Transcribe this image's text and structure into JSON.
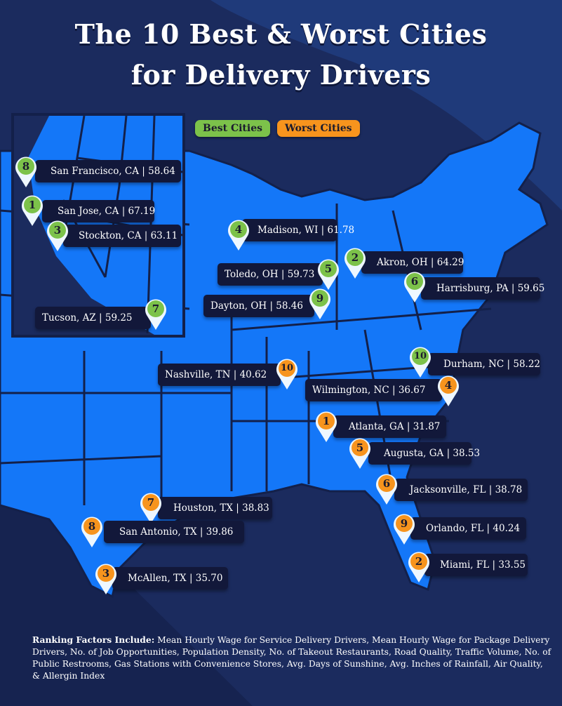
{
  "title_line1": "The 10 Best & Worst Cities",
  "title_line2": "for Delivery Drivers",
  "legend": {
    "best": "Best Cities",
    "worst": "Worst Cities"
  },
  "colors": {
    "background": "#1b2b5e",
    "map": "#1477f8",
    "best": "#7cc24a",
    "worst": "#f7941d",
    "label": "#12183a"
  },
  "best_cities": [
    {
      "rank": "8",
      "label": "San Francisco, CA | 58.64"
    },
    {
      "rank": "1",
      "label": "San Jose, CA | 67.19"
    },
    {
      "rank": "3",
      "label": "Stockton, CA | 63.11"
    },
    {
      "rank": "7",
      "label": "Tucson, AZ | 59.25"
    },
    {
      "rank": "4",
      "label": "Madison, WI | 61.78"
    },
    {
      "rank": "5",
      "label": "Toledo, OH | 59.73"
    },
    {
      "rank": "2",
      "label": "Akron, OH | 64.29"
    },
    {
      "rank": "9",
      "label": "Dayton, OH | 58.46"
    },
    {
      "rank": "6",
      "label": "Harrisburg, PA | 59.65"
    },
    {
      "rank": "10",
      "label": "Durham, NC | 58.22"
    }
  ],
  "worst_cities": [
    {
      "rank": "10",
      "label": "Nashville, TN | 40.62"
    },
    {
      "rank": "4",
      "label": "Wilmington, NC | 36.67"
    },
    {
      "rank": "1",
      "label": "Atlanta, GA | 31.87"
    },
    {
      "rank": "5",
      "label": "Augusta, GA | 38.53"
    },
    {
      "rank": "6",
      "label": "Jacksonville, FL | 38.78"
    },
    {
      "rank": "9",
      "label": "Orlando, FL | 40.24"
    },
    {
      "rank": "2",
      "label": "Miami, FL | 33.55"
    },
    {
      "rank": "7",
      "label": "Houston, TX | 38.83"
    },
    {
      "rank": "8",
      "label": "San Antonio, TX | 39.86"
    },
    {
      "rank": "3",
      "label": "McAllen, TX | 35.70"
    }
  ],
  "footer": {
    "heading": "Ranking Factors Include:",
    "text": " Mean Hourly Wage for Service Delivery Drivers, Mean Hourly Wage for Package Delivery Drivers, No. of Job Opportunities, Population Density, No. of Takeout Restaurants, Road Quality, Traffic Volume, No. of Public Restrooms, Gas Stations with Convenience Stores, Avg. Days of Sunshine, Avg. Inches of Rainfall, Air Quality, & Allergin Index"
  }
}
